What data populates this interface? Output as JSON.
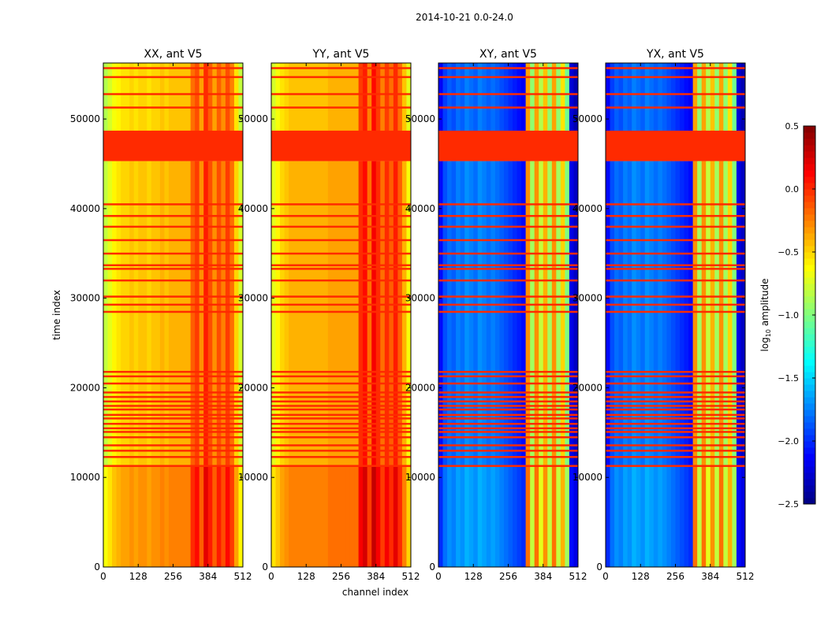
{
  "chart_data": {
    "type": "heatmap",
    "suptitle": "2014-10-21 0.0-24.0",
    "xlabel": "channel index",
    "ylabel": "time index",
    "xlim": [
      0,
      512
    ],
    "ylim": [
      0,
      56250
    ],
    "xticks": [
      "0",
      "128",
      "256",
      "384",
      "512"
    ],
    "yticks": [
      "0",
      "10000",
      "20000",
      "30000",
      "40000",
      "50000"
    ],
    "colorbar": {
      "label": "log10 amplitude",
      "label_main": "log",
      "label_sub": "10",
      "label_rest": " amplitude",
      "range": [
        -2.5,
        0.5
      ],
      "ticks": [
        "0.5",
        "0.0",
        "−0.5",
        "−1.0",
        "−1.5",
        "−2.0",
        "−2.5"
      ],
      "colormap": "jet"
    },
    "flag_value": 0.0,
    "flagged_time_ranges": [
      [
        45300,
        48700
      ]
    ],
    "flagged_time_lines": [
      11300,
      12300,
      13000,
      13600,
      14500,
      15100,
      15500,
      16000,
      16600,
      17000,
      17600,
      18000,
      18500,
      19000,
      19500,
      20500,
      21300,
      21800,
      28500,
      29300,
      30200,
      32000,
      33300,
      33700,
      35000,
      36500,
      38000,
      39200,
      40500,
      51300,
      52800,
      54700,
      55700
    ],
    "panels": [
      {
        "title": "XX, ant V5",
        "channel_profile": [
          -0.8,
          -0.7,
          -0.6,
          -0.55,
          -0.5,
          -0.5,
          -0.45,
          -0.5,
          -0.45,
          -0.45,
          -0.5,
          -0.45,
          -0.45,
          -0.4,
          -0.45,
          -0.4,
          -0.4,
          -0.4,
          -0.4,
          -0.4,
          -0.15,
          -0.05,
          -0.3,
          0.05,
          -0.1,
          -0.3,
          -0.1,
          -0.25,
          -0.05,
          -0.2,
          -0.5,
          -0.75
        ],
        "low_block_offset": 0.15
      },
      {
        "title": "YY, ant V5",
        "channel_profile": [
          -0.7,
          -0.6,
          -0.5,
          -0.45,
          -0.4,
          -0.4,
          -0.4,
          -0.4,
          -0.4,
          -0.4,
          -0.4,
          -0.4,
          -0.4,
          -0.35,
          -0.35,
          -0.35,
          -0.35,
          -0.35,
          -0.35,
          -0.35,
          0.0,
          0.1,
          -0.2,
          0.15,
          0.0,
          -0.2,
          0.0,
          -0.15,
          0.05,
          -0.15,
          -0.4,
          -0.65
        ],
        "low_block_offset": 0.15
      },
      {
        "title": "XY, ant V5",
        "channel_profile": [
          -2.1,
          -1.9,
          -1.8,
          -1.85,
          -1.75,
          -1.8,
          -1.7,
          -1.75,
          -1.8,
          -1.7,
          -1.75,
          -1.8,
          -1.75,
          -1.8,
          -1.85,
          -1.9,
          -1.95,
          -2.0,
          -2.05,
          -2.1,
          -0.3,
          -0.9,
          -0.3,
          -0.8,
          -0.4,
          -0.9,
          -0.3,
          -0.9,
          -0.5,
          -1.0,
          -2.2,
          -2.3
        ],
        "low_block_offset": 0.1
      },
      {
        "title": "YX, ant V5",
        "channel_profile": [
          -2.1,
          -1.9,
          -1.8,
          -1.85,
          -1.75,
          -1.8,
          -1.7,
          -1.75,
          -1.8,
          -1.7,
          -1.75,
          -1.8,
          -1.75,
          -1.8,
          -1.85,
          -1.9,
          -1.95,
          -2.0,
          -2.05,
          -2.1,
          -0.3,
          -0.9,
          -0.3,
          -0.8,
          -0.4,
          -0.9,
          -0.3,
          -0.9,
          -0.5,
          -1.0,
          -2.2,
          -2.3
        ],
        "low_block_offset": 0.1
      }
    ]
  }
}
